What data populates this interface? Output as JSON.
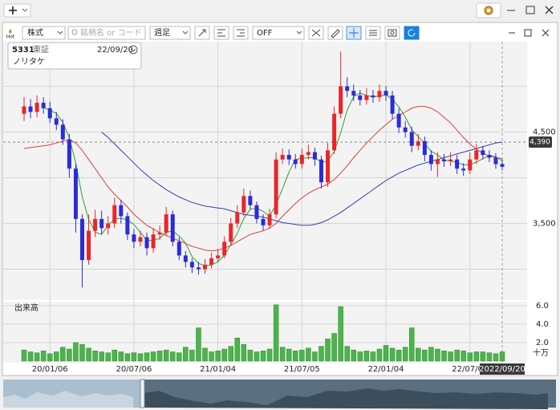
{
  "toolbar": {
    "market": "株式",
    "search_placeholder": "銘柄名 or コード",
    "period": "週足",
    "mode": "OFF",
    "hot_label": "Hot"
  },
  "info_box": {
    "code": "5331",
    "exchange": "東証",
    "date": "22/09/20",
    "name": "ノリタケ"
  },
  "chart_data": {
    "type": "candlestick",
    "categories": [
      null,
      null,
      null,
      null,
      "20/01/06",
      null,
      null,
      null,
      null,
      null,
      null,
      null,
      null,
      null,
      null,
      null,
      null,
      "20/07/06",
      null,
      null,
      null,
      null,
      null,
      null,
      null,
      null,
      null,
      null,
      null,
      null,
      "21/01/04",
      null,
      null,
      null,
      null,
      null,
      null,
      null,
      null,
      null,
      null,
      null,
      null,
      "21/07/05",
      null,
      null,
      null,
      null,
      null,
      null,
      null,
      null,
      null,
      null,
      null,
      null,
      "22/01/04",
      null,
      null,
      null,
      null,
      null,
      null,
      null,
      null,
      null,
      null,
      null,
      null,
      "22/07/04",
      null,
      null,
      null,
      null,
      "2022/09/20"
    ],
    "open": [
      4700,
      4780,
      4720,
      4820,
      4760,
      4650,
      4580,
      4420,
      4100,
      3550,
      3100,
      3420,
      3550,
      3450,
      3500,
      3700,
      3580,
      3380,
      3300,
      3350,
      3230,
      3380,
      3400,
      3600,
      3300,
      3150,
      3080,
      3020,
      3000,
      3050,
      3120,
      3150,
      3300,
      3500,
      3620,
      3800,
      3700,
      3550,
      3480,
      3600,
      4200,
      4250,
      4200,
      4150,
      4250,
      4280,
      4200,
      3950,
      4300,
      4700,
      5000,
      4950,
      4900,
      4850,
      4900,
      4880,
      4950,
      4900,
      4700,
      4550,
      4500,
      4350,
      4400,
      4250,
      4150,
      4200,
      4180,
      4200,
      4100,
      4080,
      4200,
      4300,
      4250,
      4220,
      4150
    ],
    "high": [
      4880,
      4860,
      4900,
      4880,
      4830,
      4720,
      4640,
      4480,
      4150,
      3600,
      3600,
      3650,
      3640,
      3580,
      3780,
      3760,
      3620,
      3440,
      3420,
      3400,
      3450,
      3480,
      3680,
      3640,
      3350,
      3200,
      3120,
      3080,
      3110,
      3180,
      3220,
      3360,
      3560,
      3700,
      3880,
      3860,
      3740,
      3600,
      3660,
      4280,
      4320,
      4310,
      4260,
      4320,
      4360,
      4330,
      4240,
      4380,
      4780,
      5380,
      5100,
      5020,
      4960,
      4980,
      4960,
      5020,
      5000,
      4950,
      4760,
      4620,
      4560,
      4480,
      4450,
      4300,
      4280,
      4260,
      4280,
      4250,
      4160,
      4280,
      4370,
      4350,
      4300,
      4270,
      4200
    ],
    "low": [
      4620,
      4650,
      4660,
      4700,
      4600,
      4520,
      4360,
      4000,
      3400,
      2800,
      3050,
      3350,
      3380,
      3380,
      3450,
      3500,
      3320,
      3230,
      3250,
      3150,
      3180,
      3320,
      3360,
      3250,
      3100,
      3020,
      2960,
      2940,
      2950,
      3010,
      3080,
      3120,
      3260,
      3450,
      3580,
      3650,
      3500,
      3420,
      3440,
      3560,
      4150,
      4140,
      4100,
      4100,
      4200,
      4130,
      3880,
      3900,
      4260,
      4650,
      4880,
      4840,
      4790,
      4800,
      4820,
      4830,
      4840,
      4640,
      4490,
      4440,
      4280,
      4300,
      4180,
      4080,
      4010,
      4120,
      4130,
      4040,
      4020,
      4040,
      4150,
      4200,
      4170,
      4100,
      4080
    ],
    "close": [
      4780,
      4720,
      4820,
      4760,
      4650,
      4580,
      4420,
      4100,
      3550,
      3100,
      3420,
      3550,
      3450,
      3500,
      3700,
      3580,
      3380,
      3300,
      3350,
      3230,
      3380,
      3400,
      3600,
      3300,
      3150,
      3080,
      3020,
      3000,
      3050,
      3120,
      3150,
      3300,
      3500,
      3620,
      3800,
      3700,
      3550,
      3480,
      3600,
      4200,
      4250,
      4200,
      4150,
      4250,
      4280,
      4200,
      3950,
      4300,
      4700,
      5000,
      4950,
      4900,
      4850,
      4900,
      4880,
      4950,
      4900,
      4700,
      4550,
      4500,
      4350,
      4400,
      4250,
      4150,
      4200,
      4180,
      4200,
      4100,
      4080,
      4200,
      4300,
      4250,
      4220,
      4150,
      4120
    ],
    "up_color": "#e8262a",
    "down_color": "#2b2bd9",
    "moving_averages": [
      {
        "color": "#2e9e2e",
        "values": [
          null,
          null,
          null,
          4770,
          4738,
          4703,
          4603,
          4438,
          4163,
          3793,
          3543,
          3405,
          3380,
          3480,
          3550,
          3558,
          3540,
          3490,
          3403,
          3315,
          3315,
          3340,
          3403,
          3420,
          3363,
          3283,
          3138,
          3063,
          3038,
          3048,
          3080,
          3155,
          3268,
          3393,
          3555,
          3655,
          3668,
          3633,
          3583,
          3708,
          3883,
          4063,
          4200,
          4213,
          4220,
          4220,
          4170,
          4183,
          4288,
          4488,
          4738,
          4888,
          4925,
          4900,
          4883,
          4895,
          4908,
          4858,
          4775,
          4663,
          4525,
          4450,
          4375,
          4288,
          4250,
          4195,
          4183,
          4170,
          4140,
          4145,
          4170,
          4208,
          4243,
          4230,
          4185
        ]
      },
      {
        "color": "#d84040",
        "values": [
          4320,
          4330,
          4340,
          4350,
          4360,
          4380,
          4400,
          4420,
          4380,
          4300,
          4200,
          4100,
          4000,
          3900,
          3820,
          3750,
          3680,
          3600,
          3540,
          3480,
          3440,
          3400,
          3370,
          3340,
          3310,
          3280,
          3250,
          3230,
          3210,
          3200,
          3210,
          3230,
          3260,
          3300,
          3340,
          3380,
          3400,
          3420,
          3450,
          3500,
          3580,
          3650,
          3720,
          3780,
          3830,
          3870,
          3900,
          3930,
          3980,
          4050,
          4130,
          4220,
          4300,
          4380,
          4450,
          4520,
          4580,
          4640,
          4680,
          4720,
          4760,
          4780,
          4780,
          4760,
          4720,
          4660,
          4600,
          4520,
          4440,
          4370,
          4310,
          4270,
          4240,
          4220,
          4210
        ]
      },
      {
        "color": "#3a3ab0",
        "values": [
          null,
          null,
          null,
          null,
          null,
          null,
          null,
          null,
          null,
          null,
          null,
          null,
          4500,
          4440,
          4370,
          4300,
          4230,
          4160,
          4090,
          4030,
          3970,
          3920,
          3870,
          3830,
          3790,
          3760,
          3730,
          3710,
          3690,
          3680,
          3670,
          3660,
          3640,
          3620,
          3600,
          3590,
          3580,
          3570,
          3550,
          3530,
          3510,
          3500,
          3490,
          3480,
          3480,
          3490,
          3510,
          3540,
          3580,
          3620,
          3670,
          3720,
          3770,
          3820,
          3870,
          3920,
          3970,
          4010,
          4050,
          4080,
          4110,
          4140,
          4160,
          4180,
          4200,
          4220,
          4240,
          4260,
          4280,
          4300,
          4320,
          4340,
          4360,
          4380,
          4390
        ]
      }
    ],
    "ylim": [
      2680,
      5470
    ],
    "yticks": [
      {
        "value": 3500,
        "label": "3,500"
      },
      {
        "value": 4500,
        "label": "4,500"
      }
    ],
    "grid_values": [
      3000,
      4000,
      5000
    ],
    "last_price": {
      "value": 4390,
      "label": "4,390"
    },
    "volume": {
      "title": "出来高",
      "unit": "十万",
      "color": "#4db34d",
      "values": [
        1.2,
        1.0,
        0.9,
        1.1,
        0.8,
        1.0,
        1.5,
        1.3,
        2.0,
        1.8,
        1.4,
        1.1,
        1.0,
        0.9,
        1.2,
        1.0,
        0.8,
        0.9,
        0.8,
        0.9,
        1.0,
        1.1,
        1.2,
        1.0,
        0.9,
        1.5,
        1.2,
        3.6,
        1.4,
        1.0,
        1.1,
        1.3,
        1.6,
        2.5,
        1.8,
        1.2,
        1.0,
        1.1,
        1.3,
        6.1,
        1.5,
        1.3,
        1.1,
        1.2,
        1.4,
        1.0,
        1.6,
        2.4,
        3.0,
        5.9,
        1.6,
        1.2,
        1.0,
        1.1,
        1.0,
        1.3,
        1.7,
        1.4,
        1.2,
        1.5,
        3.6,
        1.4,
        1.2,
        1.5,
        1.3,
        1.1,
        1.0,
        1.2,
        1.1,
        0.9,
        1.0,
        1.0,
        0.9,
        0.8,
        1.0
      ],
      "ylim": [
        0,
        6.26
      ],
      "yticks": [
        {
          "value": 2,
          "label": "2.0"
        },
        {
          "value": 4,
          "label": "4.0"
        },
        {
          "value": 6,
          "label": "6.0"
        }
      ]
    }
  }
}
